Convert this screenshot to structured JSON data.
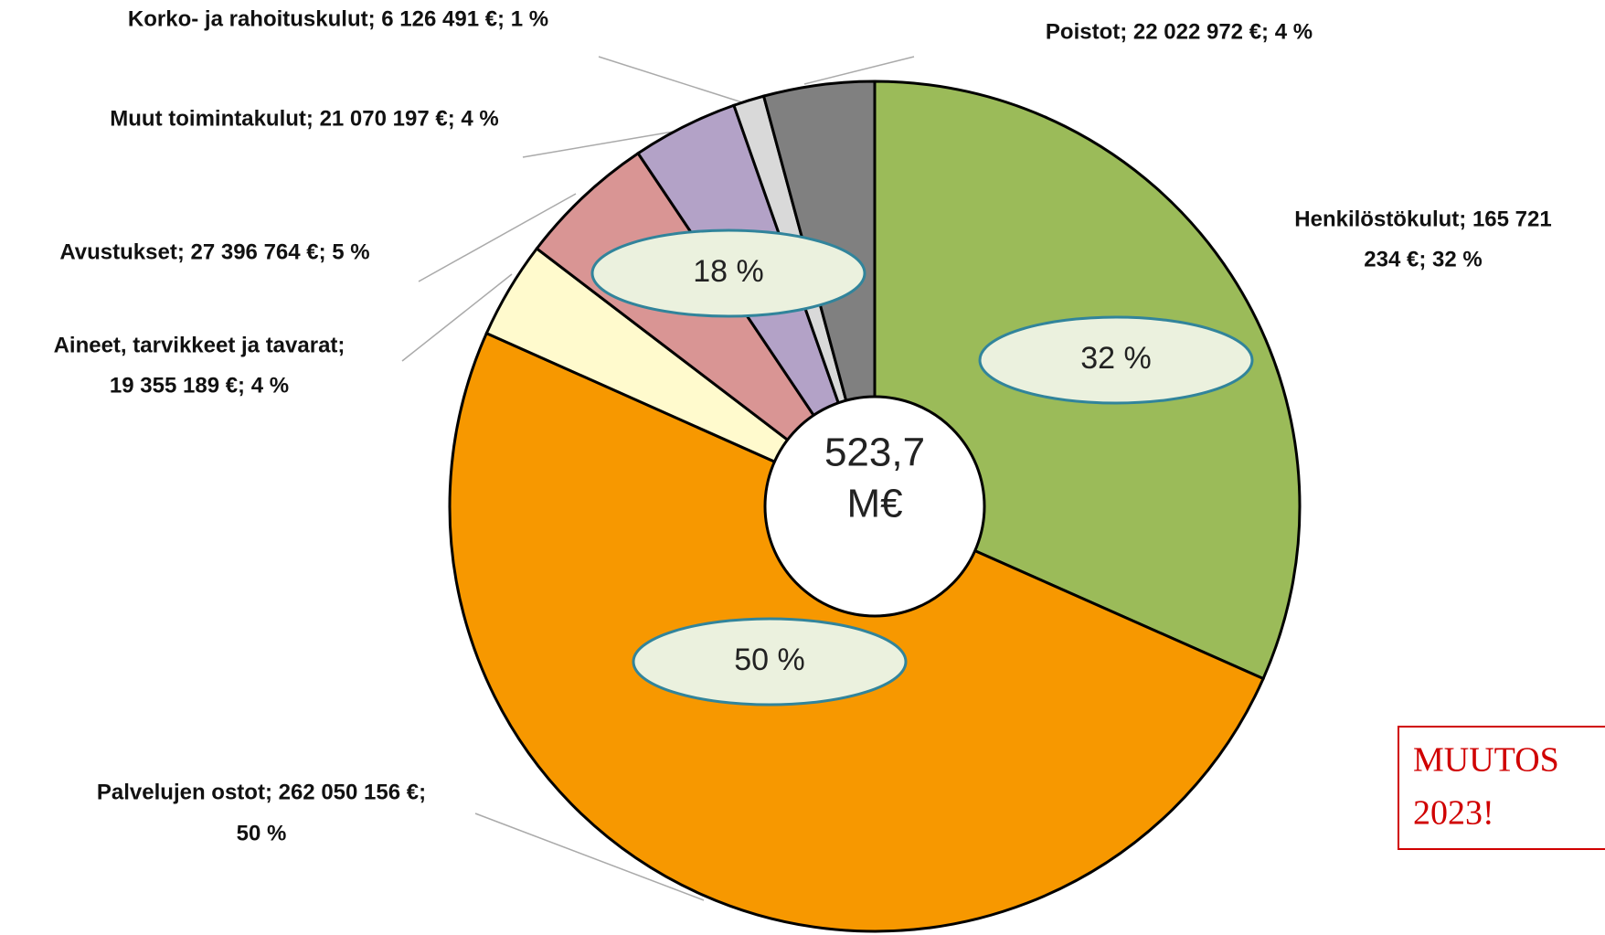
{
  "chart_data": {
    "type": "pie",
    "values": [
      165721234,
      262050156,
      19355189,
      27396764,
      21070197,
      6126491,
      22022972
    ],
    "value_labels": [
      [
        "Henkilöstökulut; 165 721",
        "234 €; 32 %"
      ],
      [
        "Palvelujen ostot; 262 050 156 €;",
        "50 %"
      ],
      [
        "Aineet, tarvikkeet ja tavarat;",
        "19 355 189 €; 4 %"
      ],
      [
        "Avustukset; 27 396 764 €; 5 %"
      ],
      [
        "Muut toimintakulut; 21 070 197 €; 4 %"
      ],
      [
        "Korko- ja rahoituskulut;  6 126 491 €; 1 %"
      ],
      [
        "Poistot; 22 022 972 €; 4 %"
      ]
    ],
    "colors": [
      "#9bbb59",
      "#f79800",
      "#fffacd",
      "#d99594",
      "#b3a2c7",
      "#d9d9d9",
      "#808080"
    ],
    "annotations": {
      "group_labels": [
        "32 %",
        "50 %",
        "18 %"
      ],
      "center": [
        "523,7",
        "M€"
      ],
      "note": [
        "MUUTOS",
        "2023!"
      ]
    }
  }
}
